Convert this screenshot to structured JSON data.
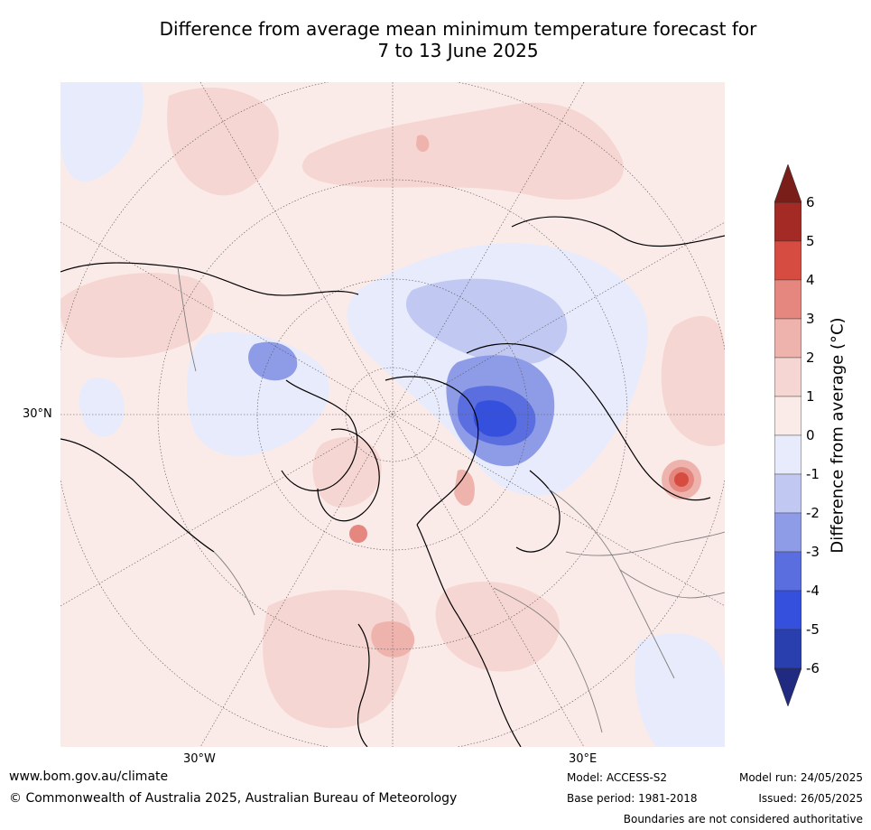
{
  "title_line1": "Difference from average mean minimum temperature forecast for",
  "title_line2": "7 to 13 June 2025",
  "map": {
    "projection": "north-polar-stereographic",
    "longitude_labels": [
      "30°W",
      "30°E"
    ],
    "latitude_labels": [
      "30°N"
    ],
    "colors": {
      "near_average": "#fbebe8",
      "warm_1_2": "#f6d6d2",
      "warm_2_3": "#eeb3ad",
      "warm_3_4": "#e5877f",
      "warm_4_5": "#d74c40",
      "cool_0_1": "#e8ebfb",
      "cool_1_2": "#c1c8f1",
      "cool_2_3": "#8e9ce8",
      "cool_3_4": "#5a6ee0",
      "cool_4_5": "#3550dd",
      "coastline": "#000000",
      "borders": "#7f7f7f",
      "graticule": "#555555"
    }
  },
  "colorbar": {
    "label": "Difference from average (°C)",
    "ticks": [
      "6",
      "5",
      "4",
      "3",
      "2",
      "1",
      "0",
      "-1",
      "-2",
      "-3",
      "-4",
      "-5",
      "-6"
    ],
    "colors": [
      "#a42a25",
      "#d74c40",
      "#e5877f",
      "#eeb3ad",
      "#f6d6d2",
      "#fbebe8",
      "#e8ebfb",
      "#c1c8f1",
      "#8e9ce8",
      "#5a6ee0",
      "#3550dd",
      "#2a3fae"
    ],
    "extend_max_color": "#7a1e19",
    "extend_min_color": "#1f2a80"
  },
  "footer": {
    "website": "www.bom.gov.au/climate",
    "copyright": "© Commonwealth of Australia 2025, Australian Bureau of Meteorology",
    "model": "Model: ACCESS-S2",
    "base_period": "Base period: 1981-2018",
    "model_run": "Model run: 24/05/2025",
    "issued": "Issued: 26/05/2025",
    "disclaimer": "Boundaries are not considered authoritative"
  }
}
